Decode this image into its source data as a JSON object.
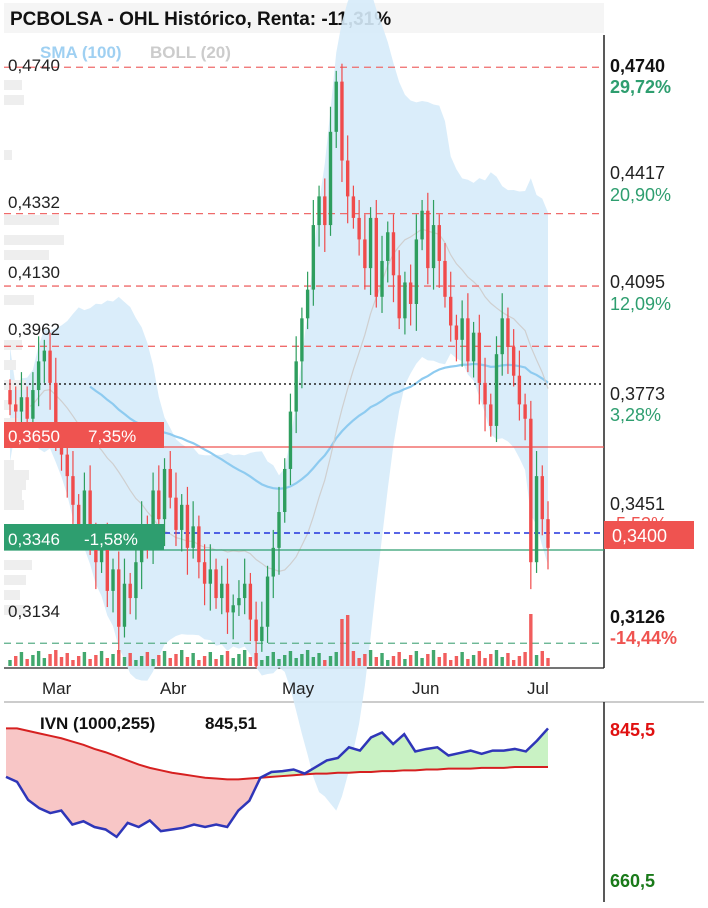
{
  "header": {
    "title": "PCBOLSA - OHL Histórico, Renta: -11,31%",
    "sma_label": "SMA (100)",
    "boll_label": "BOLL (20)"
  },
  "colors": {
    "up": "#2e9e5e",
    "down": "#f04b4b",
    "boll_fill": "#d6ebfa",
    "sma_line": "#8ecbf0",
    "price_badge": "#ef5350",
    "lower_badge": "#2e9e6f",
    "ivn_line": "#2f36b8",
    "ivn_sma": "#d62020",
    "ivn_pos_fill": "#c9f2c4",
    "ivn_neg_fill": "#f8c6c6"
  },
  "chart_data": [
    {
      "type": "candlestick",
      "title": "PCBOLSA - OHL Histórico, Renta: -11,31%",
      "x_ticks": [
        "Mar",
        "Abr",
        "May",
        "Jun",
        "Jul"
      ],
      "y_range": [
        0.3065,
        0.483
      ],
      "overlays": [
        "SMA (100)",
        "BOLL (20)"
      ],
      "left_levels": [
        "0,4740",
        "0,4332",
        "0,4130",
        "0,3962",
        "0,3134"
      ],
      "right_levels": [
        {
          "price": "0,4740",
          "pct": "29,72%"
        },
        {
          "price": "0,4417",
          "pct": "20,90%"
        },
        {
          "price": "0,4095",
          "pct": "12,09%"
        },
        {
          "price": "0,3773",
          "pct": "3,28%"
        },
        {
          "price": "0,3451",
          "pct": "-5,53%"
        },
        {
          "price": "0,3126",
          "pct": "-14,44%"
        }
      ],
      "upper_badge": {
        "price": "0,3650",
        "pct": "7,35%"
      },
      "lower_badge": {
        "price": "0,3346",
        "pct": "-1,58%"
      },
      "last_price": "0,3400",
      "closes": [
        0.38,
        0.378,
        0.382,
        0.376,
        0.384,
        0.392,
        0.395,
        0.386,
        0.37,
        0.366,
        0.36,
        0.352,
        0.346,
        0.356,
        0.344,
        0.336,
        0.34,
        0.328,
        0.334,
        0.318,
        0.33,
        0.326,
        0.336,
        0.346,
        0.34,
        0.356,
        0.348,
        0.362,
        0.354,
        0.345,
        0.352,
        0.34,
        0.346,
        0.336,
        0.33,
        0.334,
        0.326,
        0.33,
        0.322,
        0.324,
        0.326,
        0.33,
        0.32,
        0.314,
        0.318,
        0.332,
        0.34,
        0.35,
        0.362,
        0.378,
        0.392,
        0.404,
        0.412,
        0.43,
        0.438,
        0.43,
        0.456,
        0.47,
        0.448,
        0.438,
        0.432,
        0.426,
        0.418,
        0.432,
        0.41,
        0.42,
        0.428,
        0.416,
        0.404,
        0.414,
        0.408,
        0.426,
        0.434,
        0.418,
        0.43,
        0.42,
        0.41,
        0.402,
        0.398,
        0.404,
        0.392,
        0.4,
        0.386,
        0.38,
        0.374,
        0.394,
        0.404,
        0.396,
        0.388,
        0.38,
        0.376,
        0.336,
        0.36,
        0.348,
        0.34
      ],
      "ivn": {
        "label": "IVN (1000,255)",
        "value": "845,51",
        "y_top_label": "845,5",
        "y_bottom_label": "660,5",
        "y_range": [
          660.5,
          845.5
        ],
        "line": [
          786,
          780,
          758,
          748,
          742,
          745,
          728,
          732,
          725,
          722,
          713,
          730,
          725,
          733,
          720,
          722,
          724,
          728,
          725,
          728,
          725,
          745,
          757,
          785,
          792,
          793,
          795,
          790,
          798,
          806,
          809,
          822,
          818,
          834,
          840,
          826,
          838,
          817,
          820,
          822,
          812,
          815,
          818,
          814,
          818,
          818,
          820,
          817,
          830,
          845
        ],
        "sma": [
          845,
          845,
          842,
          839,
          836,
          833,
          829,
          825,
          820,
          816,
          811,
          806,
          801,
          797,
          794,
          791,
          789,
          787,
          785,
          784,
          783,
          783,
          784,
          785,
          786,
          787,
          788,
          789,
          790,
          790,
          791,
          791,
          792,
          792,
          793,
          793,
          794,
          794,
          795,
          795,
          796,
          796,
          796,
          797,
          797,
          797,
          798,
          798,
          798,
          798
        ]
      }
    }
  ]
}
